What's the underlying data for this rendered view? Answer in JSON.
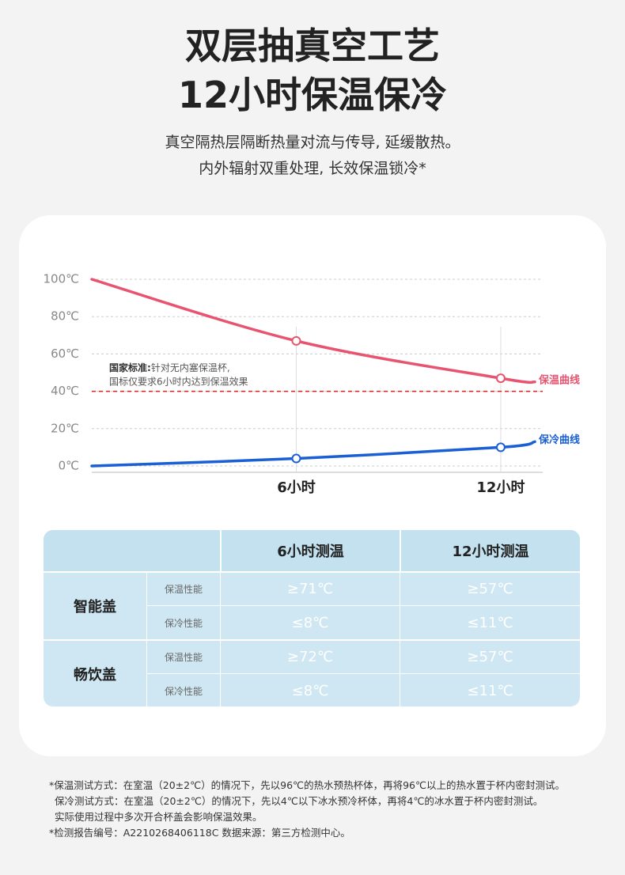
{
  "header": {
    "title_lines": [
      "双层抽真空工艺",
      "12小时保温保冷"
    ],
    "subtitle_lines": [
      "真空隔热层隔断热量对流与传导, 延缓散热。",
      "内外辐射双重处理, 长效保温锁冷*"
    ]
  },
  "chart_data": {
    "type": "line",
    "x": [
      0,
      6,
      12,
      13
    ],
    "xlim": [
      0,
      13
    ],
    "xticks": [
      {
        "value": 6,
        "label": "6小时"
      },
      {
        "value": 12,
        "label": "12小时"
      }
    ],
    "ylim": [
      0,
      100
    ],
    "yticks": [
      {
        "value": 0,
        "label": "0℃"
      },
      {
        "value": 20,
        "label": "20℃"
      },
      {
        "value": 40,
        "label": "40℃"
      },
      {
        "value": 60,
        "label": "60℃"
      },
      {
        "value": 80,
        "label": "80℃"
      },
      {
        "value": 100,
        "label": "100℃"
      }
    ],
    "grid": true,
    "series": [
      {
        "name": "保温曲线",
        "color": "#e8546f",
        "values": [
          100,
          67,
          47,
          45
        ]
      },
      {
        "name": "保冷曲线",
        "color": "#1a5fd6",
        "values": [
          0,
          4,
          10,
          13
        ]
      }
    ],
    "reference_line": {
      "value": 40,
      "color": "#e02020"
    },
    "annotation": {
      "label": "国家标准:",
      "lines": [
        "针对无内塞保温杯,",
        "国标仅要求6小时内达到保温效果"
      ]
    }
  },
  "table": {
    "columns": [
      "6小时测温",
      "12小时测温"
    ],
    "groups": [
      {
        "name": "智能盖",
        "rows": [
          {
            "label": "保温性能",
            "cells": [
              "≥71℃",
              "≥57℃"
            ]
          },
          {
            "label": "保冷性能",
            "cells": [
              "≤8℃",
              "≤11℃"
            ]
          }
        ]
      },
      {
        "name": "畅饮盖",
        "rows": [
          {
            "label": "保温性能",
            "cells": [
              "≥72℃",
              "≥57℃"
            ]
          },
          {
            "label": "保冷性能",
            "cells": [
              "≤8℃",
              "≤11℃"
            ]
          }
        ]
      }
    ]
  },
  "footnotes": [
    "*保温测试方式：在室温（20±2℃）的情况下，先以96℃的热水预热杯体，再将96℃以上的热水置于杯内密封测试。",
    "保冷测试方式：在室温（20±2℃）的情况下，先以4℃以下冰水预冷杯体，再将4℃的冰水置于杯内密封测试。",
    "实际使用过程中多次开合杯盖会影响保温效果。",
    "*检测报告编号：A2210268406118C 数据来源：第三方检测中心。"
  ]
}
